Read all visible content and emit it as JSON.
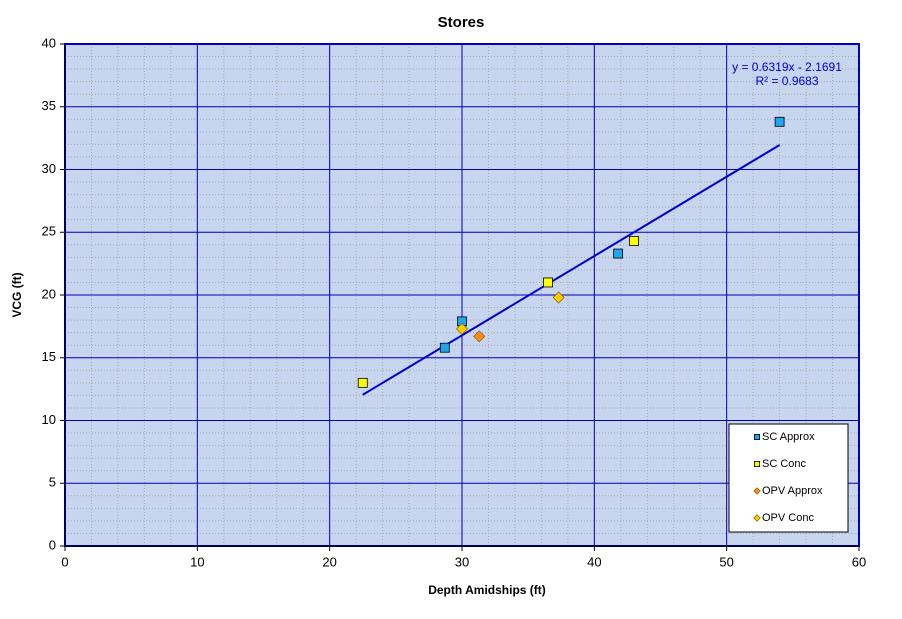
{
  "chart_data": {
    "type": "scatter",
    "title": "Stores",
    "x_label": "Depth Amidships  (ft)",
    "y_label": "VCG  (ft)",
    "xlim": [
      0,
      60
    ],
    "xticks": [
      0,
      10,
      20,
      30,
      40,
      50,
      60
    ],
    "ylim": [
      0,
      40
    ],
    "yticks": [
      0,
      5,
      10,
      15,
      20,
      25,
      30,
      35,
      40
    ],
    "grid": true,
    "minor_grid": true,
    "legend": "lower right",
    "series": [
      {
        "name": "SC Approx",
        "color": "#1ea6ec",
        "marker": "square",
        "x": [
          28.7,
          30.0,
          41.8,
          54.0
        ],
        "values": [
          15.8,
          17.9,
          23.3,
          33.8
        ]
      },
      {
        "name": "SC Conc",
        "color": "#ffff00",
        "marker": "square",
        "x": [
          22.5,
          36.5,
          43.0
        ],
        "values": [
          13.0,
          21.0,
          24.3
        ]
      },
      {
        "name": "OPV Approx",
        "color": "#ff8c1a",
        "marker": "diamond",
        "x": [
          31.3
        ],
        "values": [
          16.7
        ]
      },
      {
        "name": "OPV Conc",
        "color": "#ffcc00",
        "marker": "diamond",
        "x": [
          30.0,
          37.3
        ],
        "values": [
          17.3,
          19.8
        ]
      }
    ],
    "trendline": {
      "color": "#0000cc",
      "x": [
        22.5,
        54.0
      ],
      "values": [
        12.05,
        31.95
      ],
      "equation": "y = 0.6319x - 2.1691",
      "r_squared": "R² = 0.9683"
    }
  }
}
